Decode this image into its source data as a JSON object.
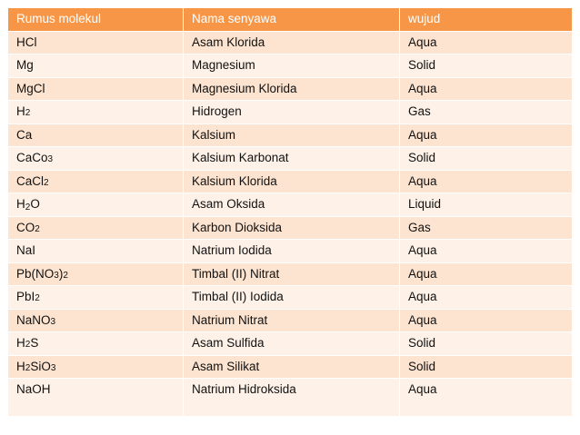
{
  "table": {
    "headers": [
      "Rumus molekul",
      "Nama senyawa",
      "wujud"
    ],
    "header_color": "#F79646",
    "row_colors": [
      "#FDE4D0",
      "#FEF2E8"
    ],
    "rows": [
      {
        "formula": [
          [
            "HCl",
            false
          ]
        ],
        "name": "Asam Klorida",
        "state": "Aqua"
      },
      {
        "formula": [
          [
            "Mg",
            false
          ]
        ],
        "name": "Magnesium",
        "state": "Solid"
      },
      {
        "formula": [
          [
            "MgCl",
            false
          ]
        ],
        "name": "Magnesium Klorida",
        "state": "Aqua"
      },
      {
        "formula": [
          [
            "H",
            false
          ],
          [
            "2",
            "num"
          ]
        ],
        "name": "Hidrogen",
        "state": "Gas"
      },
      {
        "formula": [
          [
            "Ca",
            false
          ]
        ],
        "name": "Kalsium",
        "state": "Aqua"
      },
      {
        "formula": [
          [
            "CaCo",
            false
          ],
          [
            "3",
            "num"
          ]
        ],
        "name": "Kalsium Karbonat",
        "state": "Solid"
      },
      {
        "formula": [
          [
            "CaCl",
            false
          ],
          [
            "2",
            "num"
          ]
        ],
        "name": "Kalsium Klorida",
        "state": "Aqua"
      },
      {
        "formula": [
          [
            "H",
            false
          ],
          [
            "2",
            "sub"
          ],
          [
            "O",
            false
          ]
        ],
        "name": "Asam Oksida",
        "state": "Liquid"
      },
      {
        "formula": [
          [
            "CO",
            false
          ],
          [
            "2",
            "num"
          ]
        ],
        "name": "Karbon Dioksida",
        "state": "Gas"
      },
      {
        "formula": [
          [
            "NaI",
            false
          ]
        ],
        "name": "Natrium Iodida",
        "state": "Aqua"
      },
      {
        "formula": [
          [
            "Pb(NO",
            false
          ],
          [
            "3",
            "num"
          ],
          [
            ")",
            false
          ],
          [
            "2",
            "num"
          ]
        ],
        "name": "Timbal (II)  Nitrat",
        "state": "Aqua"
      },
      {
        "formula": [
          [
            "PbI",
            false
          ],
          [
            "2",
            "num"
          ]
        ],
        "name": "Timbal (II) Iodida",
        "state": "Aqua"
      },
      {
        "formula": [
          [
            "NaNO",
            false
          ],
          [
            "3",
            "num"
          ]
        ],
        "name": "Natrium Nitrat",
        "state": "Aqua"
      },
      {
        "formula": [
          [
            "H",
            false
          ],
          [
            "2",
            "num"
          ],
          [
            "S",
            false
          ]
        ],
        "name": "Asam Sulfida",
        "state": "Solid"
      },
      {
        "formula": [
          [
            "H",
            false
          ],
          [
            "2",
            "num"
          ],
          [
            "SiO",
            false
          ],
          [
            "3",
            "num"
          ]
        ],
        "name": "Asam Silikat",
        "state": "Solid"
      },
      {
        "formula": [
          [
            "NaOH",
            false
          ]
        ],
        "name": "Natrium Hidroksida",
        "state": "Aqua"
      }
    ]
  }
}
